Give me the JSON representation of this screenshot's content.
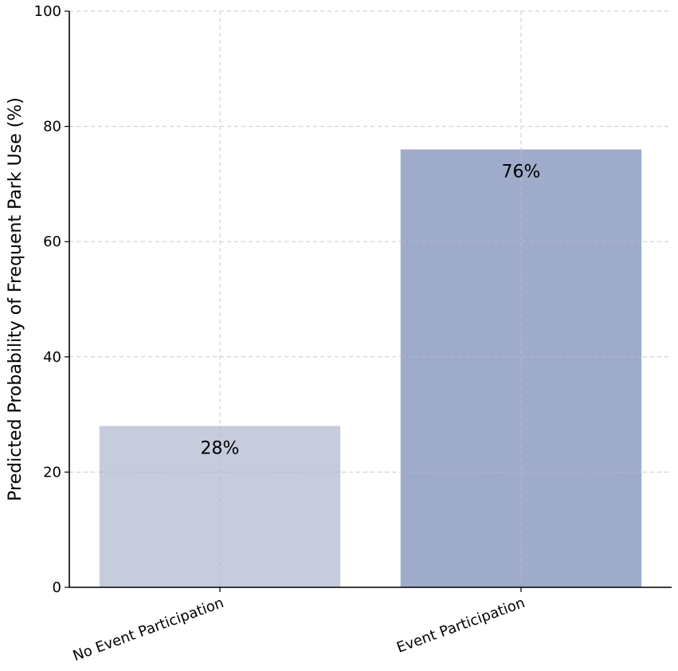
{
  "chart_data": {
    "type": "bar",
    "categories": [
      "No Event Participation",
      "Event Participation"
    ],
    "values": [
      28,
      76
    ],
    "data_labels": [
      "28%",
      "76%"
    ],
    "bar_colors": [
      "#c6ccdc",
      "#9eabca"
    ],
    "title": "",
    "xlabel": "",
    "ylabel": "Predicted Probability of Frequent Park Use (%)",
    "ylim": [
      0,
      100
    ],
    "yticks": [
      0,
      20,
      40,
      60,
      80,
      100
    ],
    "ytick_labels": [
      "0",
      "20",
      "40",
      "60",
      "80",
      "100"
    ],
    "grid": true
  }
}
